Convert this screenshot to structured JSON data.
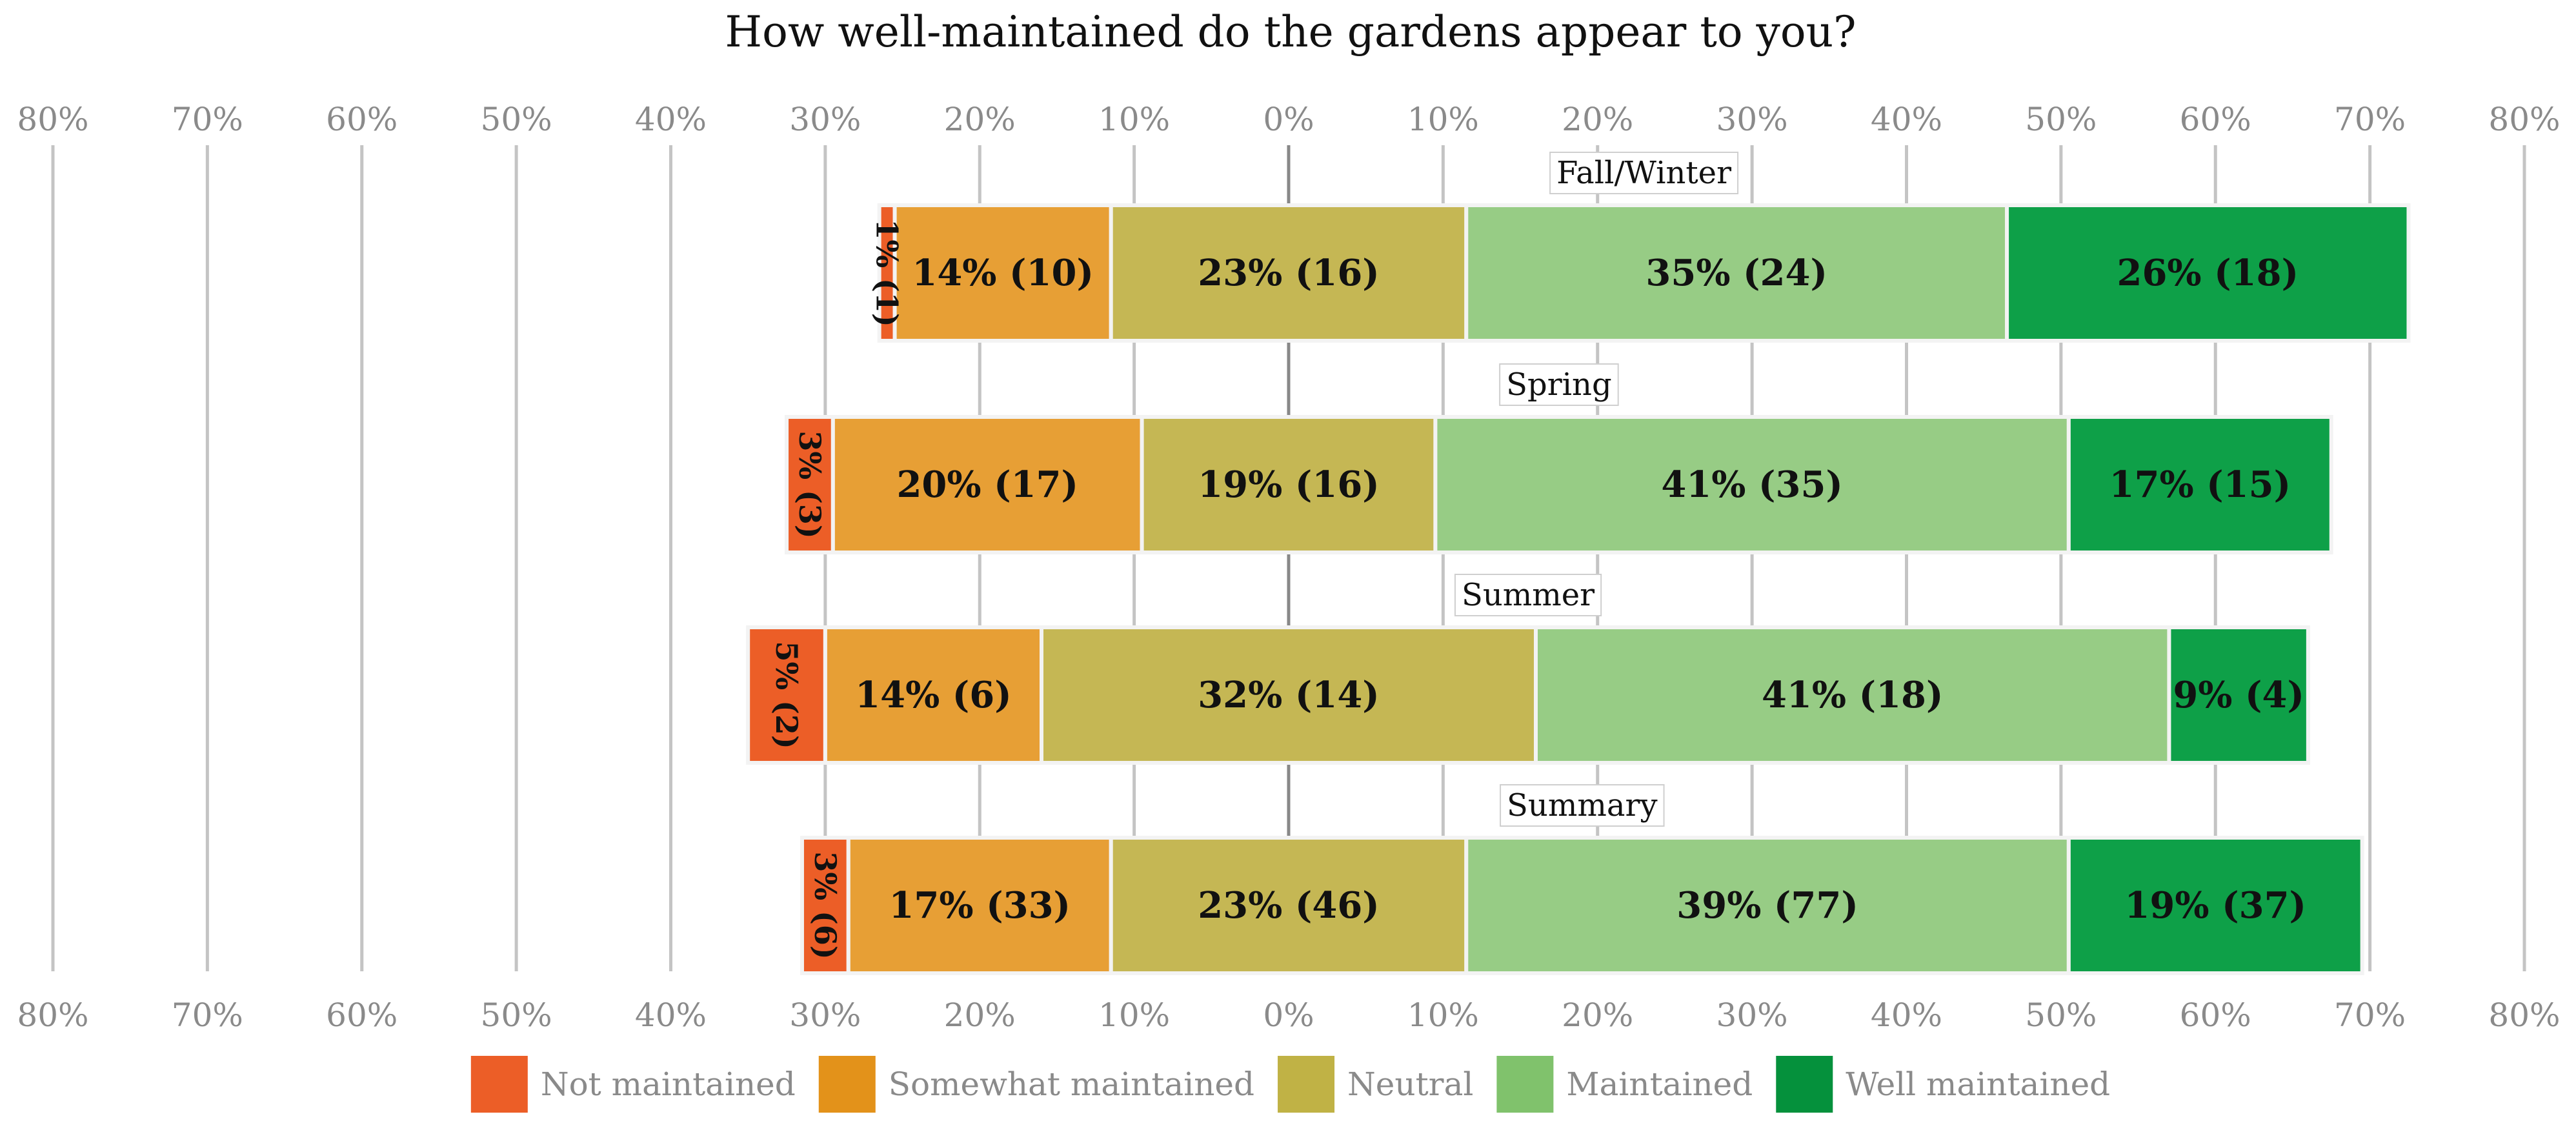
{
  "chart_data": {
    "type": "bar",
    "subtype": "diverging-stacked",
    "title": "How well-maintained do the gardens appear to you?",
    "xlabel": "",
    "ylabel": "",
    "xlim": [
      -80,
      80
    ],
    "tick_values": [
      -80,
      -70,
      -60,
      -50,
      -40,
      -30,
      -20,
      -10,
      0,
      10,
      20,
      30,
      40,
      50,
      60,
      70,
      80
    ],
    "tick_labels": [
      "80%",
      "70%",
      "60%",
      "50%",
      "40%",
      "30%",
      "20%",
      "10%",
      "0%",
      "10%",
      "20%",
      "30%",
      "40%",
      "50%",
      "60%",
      "70%",
      "80%"
    ],
    "grid": "vertical",
    "legend_position": "bottom",
    "categories": [
      "Fall/Winter",
      "Spring",
      "Summer",
      "Summary"
    ],
    "series": [
      {
        "name": "Not maintained",
        "color": "#EC5E27",
        "values": [
          1,
          3,
          5,
          3
        ],
        "labels": [
          "1% (1)",
          "3% (3)",
          "5% (2)",
          "3% (6)"
        ]
      },
      {
        "name": "Somewhat maintained",
        "color": "#E79F35",
        "values": [
          14,
          20,
          14,
          17
        ],
        "labels": [
          "14% (10)",
          "20% (17)",
          "14% (6)",
          "17% (33)"
        ]
      },
      {
        "name": "Neutral",
        "color": "#C5B754",
        "values": [
          23,
          19,
          32,
          23
        ],
        "labels": [
          "23% (16)",
          "19% (16)",
          "32% (14)",
          "23% (46)"
        ]
      },
      {
        "name": "Maintained",
        "color": "#97CC85",
        "values": [
          35,
          41,
          41,
          39
        ],
        "labels": [
          "35% (24)",
          "41% (35)",
          "41% (18)",
          "39% (77)"
        ]
      },
      {
        "name": "Well maintained",
        "color": "#0EA048",
        "values": [
          26,
          17,
          9,
          19
        ],
        "labels": [
          "26% (18)",
          "17% (15)",
          "9% (4)",
          "19% (37)"
        ]
      }
    ],
    "legend_colors": [
      "#EC5E27",
      "#E3921A",
      "#C0B245",
      "#80C26C",
      "#05913C"
    ]
  }
}
